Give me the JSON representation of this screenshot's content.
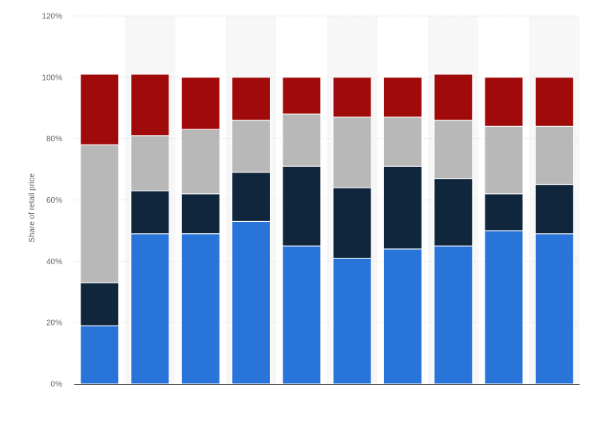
{
  "chart_data": {
    "type": "bar",
    "stacked": true,
    "title": "",
    "xlabel": "",
    "ylabel": "Share of retail price",
    "ylim": [
      0,
      120
    ],
    "yticks": [
      0,
      20,
      40,
      60,
      80,
      100,
      120
    ],
    "ytick_suffix": "%",
    "categories": [
      "",
      "",
      "",
      "",
      "",
      "",
      "",
      "",
      "",
      ""
    ],
    "grid": true,
    "alternating_column_bands": true,
    "legend": "none",
    "series": [
      {
        "color": "#2874d9",
        "values": [
          19,
          49,
          49,
          53,
          45,
          41,
          44,
          45,
          50,
          49
        ]
      },
      {
        "color": "#10263c",
        "values": [
          14,
          14,
          13,
          16,
          26,
          23,
          27,
          22,
          12,
          16
        ]
      },
      {
        "color": "#b8b8b8",
        "values": [
          45,
          18,
          21,
          17,
          17,
          23,
          16,
          19,
          22,
          19
        ]
      },
      {
        "color": "#a10a0a",
        "values": [
          23,
          20,
          17,
          14,
          12,
          13,
          13,
          15,
          16,
          16
        ]
      }
    ]
  }
}
